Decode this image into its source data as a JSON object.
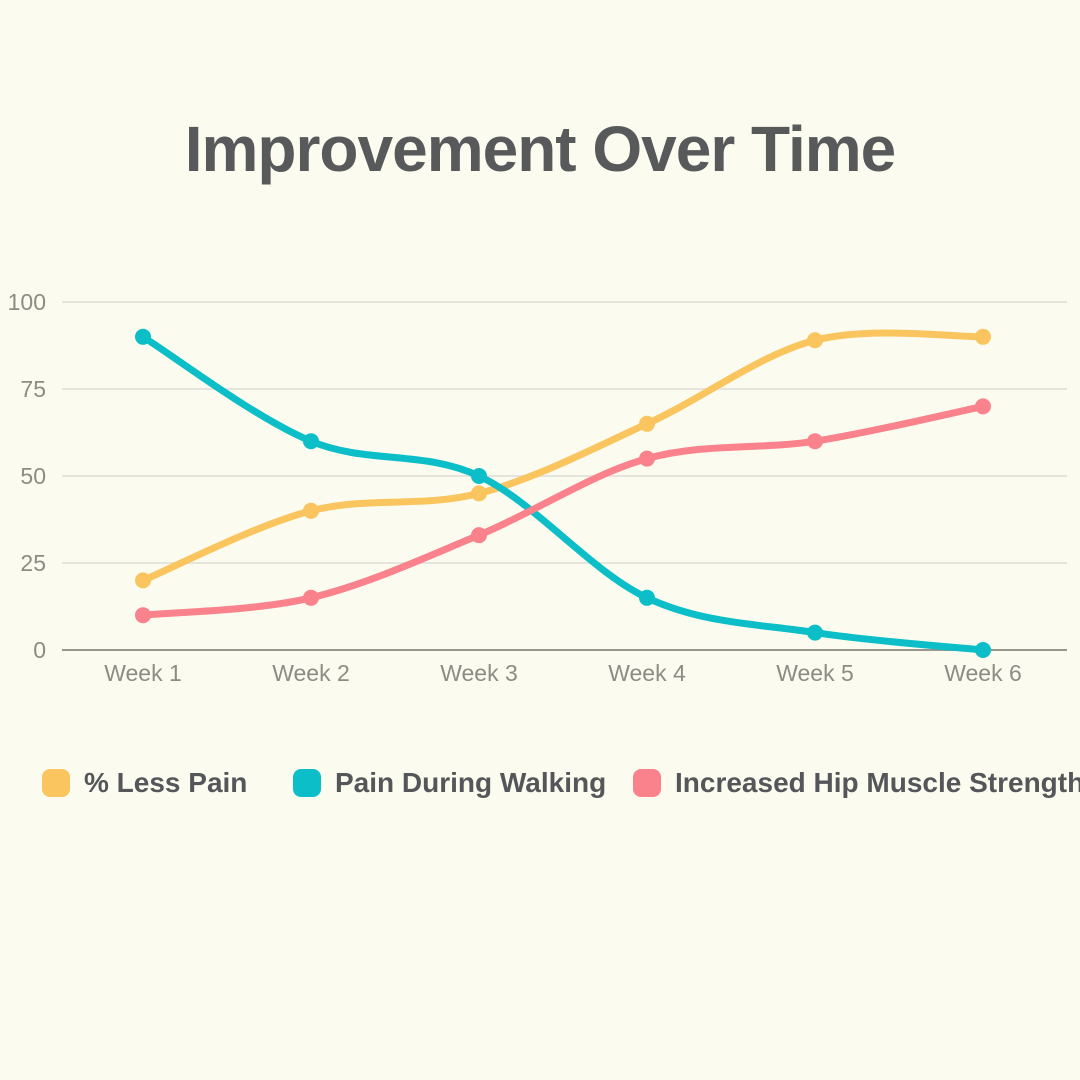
{
  "title": "Improvement Over Time",
  "colors": {
    "background": "#FBFCEF",
    "title_text": "#58595B",
    "legend_text": "#55565A",
    "axis_text": "#8C8C85",
    "grid_line": "#E5E5DC",
    "zero_line": "#97978F",
    "series_yellow": "#FAC45E",
    "series_teal": "#0CBEC7",
    "series_pink": "#F9828C"
  },
  "chart_data": {
    "type": "line",
    "categories": [
      "Week 1",
      "Week 2",
      "Week 3",
      "Week 4",
      "Week 5",
      "Week 6"
    ],
    "series": [
      {
        "name": "% Less Pain",
        "color": "#FAC45E",
        "values": [
          20,
          40,
          45,
          65,
          89,
          90
        ]
      },
      {
        "name": "Pain During Walking",
        "color": "#0CBEC7",
        "values": [
          90,
          60,
          50,
          15,
          5,
          0
        ]
      },
      {
        "name": "Increased Hip Muscle Strength",
        "color": "#F9828C",
        "values": [
          10,
          15,
          33,
          55,
          60,
          70
        ]
      }
    ],
    "title": "Improvement Over Time",
    "xlabel": "",
    "ylabel": "",
    "y_ticks": [
      0,
      25,
      50,
      75,
      100
    ],
    "ylim": [
      0,
      100
    ],
    "grid": true,
    "line_style": "smooth",
    "point_markers": true,
    "legend_position": "bottom"
  }
}
